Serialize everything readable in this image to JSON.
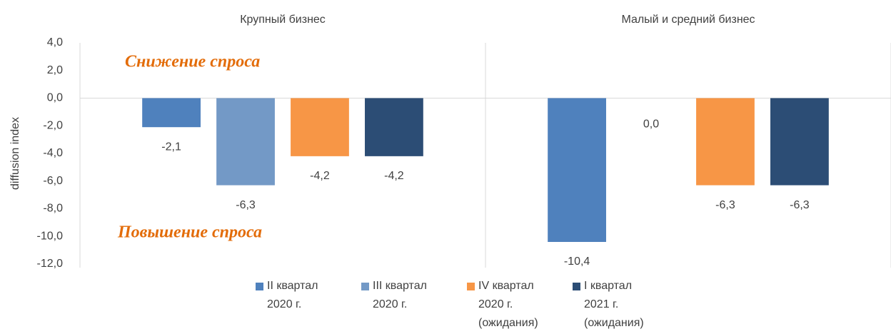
{
  "chart_data": {
    "type": "bar",
    "categories": [
      "Крупный бизнес",
      "Малый и средний бизнес"
    ],
    "series": [
      {
        "name": "II квартал 2020 г.",
        "color": "#4f81bd",
        "values": [
          -2.1,
          -10.4
        ],
        "value_labels": [
          "-2,1",
          "-10,4"
        ]
      },
      {
        "name": "III квартал 2020 г.",
        "color": "#7399c6",
        "values": [
          -6.3,
          0.0
        ],
        "value_labels": [
          "-6,3",
          "0,0"
        ]
      },
      {
        "name": "IV квартал 2020 г. (ожидания)",
        "color": "#f79646",
        "values": [
          -4.2,
          -6.3
        ],
        "value_labels": [
          "-4,2",
          "-6,3"
        ]
      },
      {
        "name": "I квартал 2021 г. (ожидания)",
        "color": "#2c4d75",
        "values": [
          -4.2,
          -6.3
        ],
        "value_labels": [
          "-4,2",
          "-6,3"
        ]
      }
    ],
    "ylabel": "diffusion index",
    "annotations": [
      "Снижение спроса",
      "Повышение спроса"
    ],
    "ylim": [
      -12,
      4
    ],
    "yticks": [
      {
        "value": 4,
        "label": "4,0"
      },
      {
        "value": 2,
        "label": "2,0"
      },
      {
        "value": 0,
        "label": "0,0"
      },
      {
        "value": -2,
        "label": "-2,0"
      },
      {
        "value": -4,
        "label": "-4,0"
      },
      {
        "value": -6,
        "label": "-6,0"
      },
      {
        "value": -8,
        "label": "-8,0"
      },
      {
        "value": -10,
        "label": "-10,0"
      },
      {
        "value": -12,
        "label": "-12,0"
      }
    ],
    "grid": false,
    "legend": "bottom"
  }
}
